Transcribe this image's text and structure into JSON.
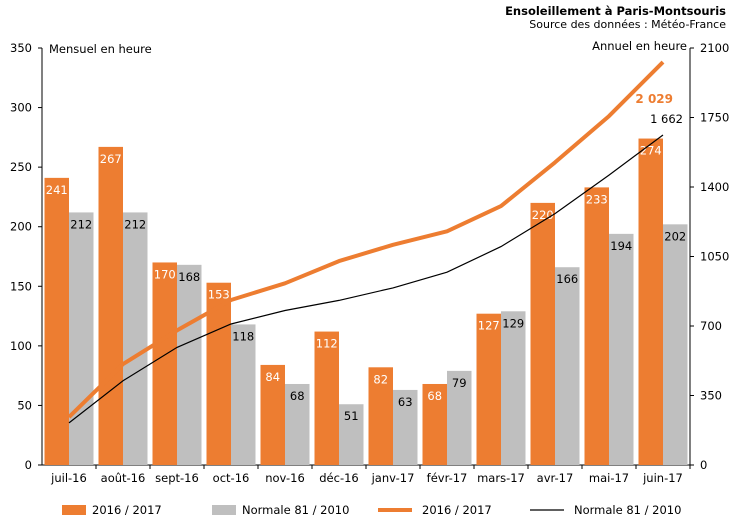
{
  "chart_data": {
    "type": "bar",
    "title": "Ensoleillement à Paris-Montsouris",
    "subtitle": "Source des données : Météo-France",
    "ylabel_left": "Mensuel en heure",
    "ylabel_right": "Annuel en heure",
    "categories": [
      "juil-16",
      "août-16",
      "sept-16",
      "oct-16",
      "nov-16",
      "déc-16",
      "janv-17",
      "févr-17",
      "mars-17",
      "avr-17",
      "mai-17",
      "juin-17"
    ],
    "y_left": {
      "min": 0,
      "max": 350,
      "ticks": [
        0,
        50,
        100,
        150,
        200,
        250,
        300,
        350
      ]
    },
    "y_right": {
      "min": 0,
      "max": 2100,
      "ticks": [
        0,
        350,
        700,
        1050,
        1400,
        1750,
        2100
      ]
    },
    "bar_series": [
      {
        "name": "2016 / 2017",
        "color": "#ed7d31",
        "values": [
          241,
          267,
          170,
          153,
          84,
          112,
          82,
          68,
          127,
          220,
          233,
          274
        ]
      },
      {
        "name": "Normale 81 / 2010",
        "color": "#bfbfbf",
        "values": [
          212,
          212,
          168,
          118,
          68,
          51,
          63,
          79,
          129,
          166,
          194,
          202
        ]
      }
    ],
    "line_series": [
      {
        "name": "2016 / 2017",
        "color": "#ed7d31",
        "axis": "right",
        "values": [
          241,
          508,
          678,
          831,
          915,
          1027,
          1109,
          1177,
          1304,
          1524,
          1757,
          2029
        ],
        "end_label": "2 029"
      },
      {
        "name": "Normale 81 / 2010",
        "color": "#000000",
        "axis": "right",
        "values": [
          212,
          424,
          592,
          710,
          778,
          829,
          892,
          971,
          1100,
          1266,
          1460,
          1662
        ],
        "end_label": "1 662"
      }
    ],
    "legend": [
      "2016 / 2017",
      "Normale 81 / 2010",
      "2016 / 2017",
      "Normale 81 / 2010"
    ],
    "legend_position": "bottom",
    "grid": false
  }
}
